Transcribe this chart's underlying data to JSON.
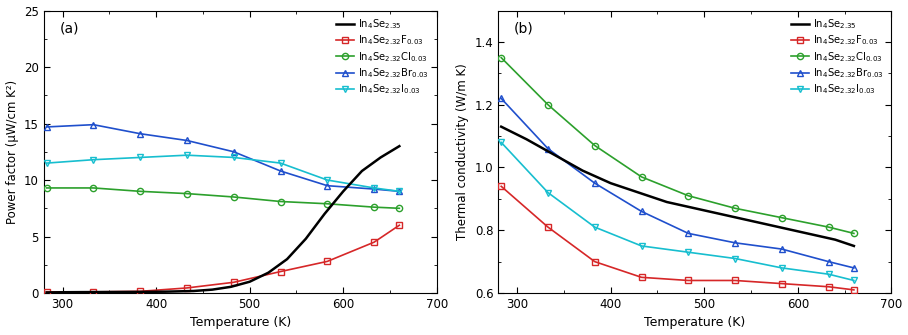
{
  "panel_a": {
    "xlabel": "Temperature (K)",
    "ylabel": "Power factor (μW/cm K²)",
    "xlim": [
      280,
      700
    ],
    "ylim": [
      0,
      25
    ],
    "xticks": [
      300,
      400,
      500,
      600,
      700
    ],
    "yticks": [
      0,
      5,
      10,
      15,
      20,
      25
    ],
    "series": [
      {
        "label": "In$_4$Se$_{2.35}$",
        "color": "#000000",
        "marker": null,
        "x": [
          283,
          300,
          320,
          350,
          380,
          410,
          440,
          460,
          480,
          500,
          520,
          540,
          560,
          580,
          600,
          620,
          640,
          660
        ],
        "y": [
          0.05,
          0.07,
          0.08,
          0.09,
          0.1,
          0.12,
          0.18,
          0.3,
          0.55,
          1.0,
          1.8,
          3.0,
          4.8,
          7.0,
          9.0,
          10.8,
          12.0,
          13.0
        ]
      },
      {
        "label": "In$_4$Se$_{2.32}$F$_{0.03}$",
        "color": "#d62728",
        "marker": "s",
        "x": [
          283,
          333,
          383,
          433,
          483,
          533,
          583,
          633,
          660
        ],
        "y": [
          0.1,
          0.1,
          0.15,
          0.45,
          0.95,
          1.9,
          2.8,
          4.5,
          6.0
        ]
      },
      {
        "label": "In$_4$Se$_{2.32}$Cl$_{0.03}$",
        "color": "#2ca02c",
        "marker": "o",
        "x": [
          283,
          333,
          383,
          433,
          483,
          533,
          583,
          633,
          660
        ],
        "y": [
          9.3,
          9.3,
          9.0,
          8.8,
          8.5,
          8.1,
          7.9,
          7.6,
          7.5
        ]
      },
      {
        "label": "In$_4$Se$_{2.32}$Br$_{0.03}$",
        "color": "#1f4fcc",
        "marker": "^",
        "x": [
          283,
          333,
          383,
          433,
          483,
          533,
          583,
          633,
          660
        ],
        "y": [
          14.7,
          14.9,
          14.1,
          13.5,
          12.5,
          10.8,
          9.5,
          9.2,
          9.0
        ]
      },
      {
        "label": "In$_4$Se$_{2.32}$I$_{0.03}$",
        "color": "#17becf",
        "marker": "v",
        "x": [
          283,
          333,
          383,
          433,
          483,
          533,
          583,
          633,
          660
        ],
        "y": [
          11.5,
          11.8,
          12.0,
          12.2,
          12.0,
          11.5,
          10.0,
          9.3,
          9.0
        ]
      }
    ]
  },
  "panel_b": {
    "xlabel": "Temperature (K)",
    "ylabel": "Thermal conductivity (W/m K)",
    "xlim": [
      280,
      700
    ],
    "ylim": [
      0.6,
      1.5
    ],
    "xticks": [
      300,
      400,
      500,
      600,
      700
    ],
    "yticks": [
      0.6,
      0.8,
      1.0,
      1.2,
      1.4
    ],
    "series": [
      {
        "label": "In$_4$Se$_{2.35}$",
        "color": "#000000",
        "marker": null,
        "x": [
          283,
          310,
          340,
          370,
          400,
          430,
          460,
          490,
          520,
          550,
          580,
          610,
          640,
          660
        ],
        "y": [
          1.13,
          1.09,
          1.04,
          0.99,
          0.95,
          0.92,
          0.89,
          0.87,
          0.85,
          0.83,
          0.81,
          0.79,
          0.77,
          0.75
        ]
      },
      {
        "label": "In$_4$Se$_{2.32}$F$_{0.03}$",
        "color": "#d62728",
        "marker": "s",
        "x": [
          283,
          333,
          383,
          433,
          483,
          533,
          583,
          633,
          660
        ],
        "y": [
          0.94,
          0.81,
          0.7,
          0.65,
          0.64,
          0.64,
          0.63,
          0.62,
          0.61
        ]
      },
      {
        "label": "In$_4$Se$_{2.32}$Cl$_{0.03}$",
        "color": "#2ca02c",
        "marker": "o",
        "x": [
          283,
          333,
          383,
          433,
          483,
          533,
          583,
          633,
          660
        ],
        "y": [
          1.35,
          1.2,
          1.07,
          0.97,
          0.91,
          0.87,
          0.84,
          0.81,
          0.79
        ]
      },
      {
        "label": "In$_4$Se$_{2.32}$Br$_{0.03}$",
        "color": "#1f4fcc",
        "marker": "^",
        "x": [
          283,
          333,
          383,
          433,
          483,
          533,
          583,
          633,
          660
        ],
        "y": [
          1.22,
          1.06,
          0.95,
          0.86,
          0.79,
          0.76,
          0.74,
          0.7,
          0.68
        ]
      },
      {
        "label": "In$_4$Se$_{2.32}$I$_{0.03}$",
        "color": "#17becf",
        "marker": "v",
        "x": [
          283,
          333,
          383,
          433,
          483,
          533,
          583,
          633,
          660
        ],
        "y": [
          1.08,
          0.92,
          0.81,
          0.75,
          0.73,
          0.71,
          0.68,
          0.66,
          0.64
        ]
      }
    ]
  }
}
